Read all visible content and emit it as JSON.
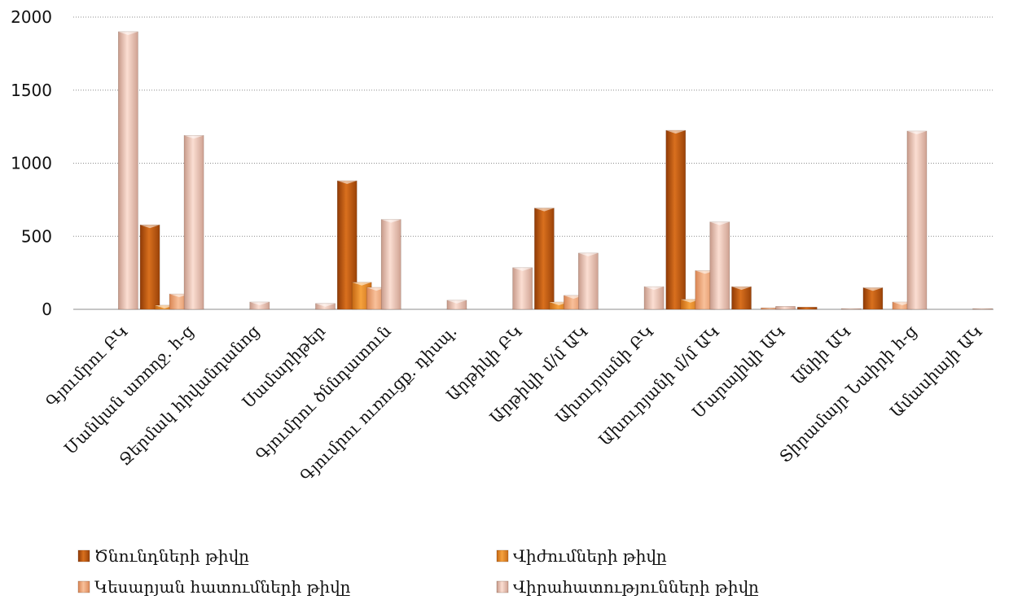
{
  "chart_data": {
    "type": "bar",
    "categories": [
      "Գյումրու ԲԿ",
      "Մանկան առողջ. h-ց",
      "Ջերմակ հիվանդանոց",
      "Սամարիթեր",
      "Գյումրու ծննդատուն",
      "Գյումրու ուռուցք. դիսպ.",
      "Արթիկի ԲԿ",
      "Արթիկի մ/մ ԱԿ",
      "Ախուրյանի ԲԿ",
      "Ախուրյանի մ/մ ԱԿ",
      "Մարալիկի ԱԿ",
      "Անիի ԱԿ",
      "Տիրամայր Նաիրի h-ց",
      "Ամասիայի ԱԿ"
    ],
    "series": [
      {
        "name": "Ծնունդների թիվը",
        "values": [
          0,
          578,
          0,
          0,
          880,
          0,
          0,
          693,
          0,
          1225,
          155,
          15,
          148,
          0
        ],
        "color": "#c65a12"
      },
      {
        "name": "Վիժումների թիվը",
        "values": [
          0,
          28,
          0,
          0,
          185,
          0,
          0,
          50,
          0,
          68,
          0,
          0,
          0,
          0
        ],
        "color": "#e8862c"
      },
      {
        "name": "Կեսարյան հատումների թիվը",
        "values": [
          0,
          105,
          0,
          0,
          150,
          0,
          0,
          95,
          0,
          265,
          10,
          0,
          50,
          0
        ],
        "color": "#f0a070"
      },
      {
        "name": "Վիրահատությունների թիվը",
        "values": [
          1900,
          1190,
          50,
          40,
          615,
          62,
          285,
          385,
          155,
          598,
          20,
          5,
          1220,
          5
        ],
        "color": "#eebba8"
      }
    ],
    "yticks": [
      0,
      500,
      1000,
      1500,
      2000
    ],
    "ylim": [
      0,
      2000
    ],
    "grid": true,
    "legend_position": "bottom"
  }
}
